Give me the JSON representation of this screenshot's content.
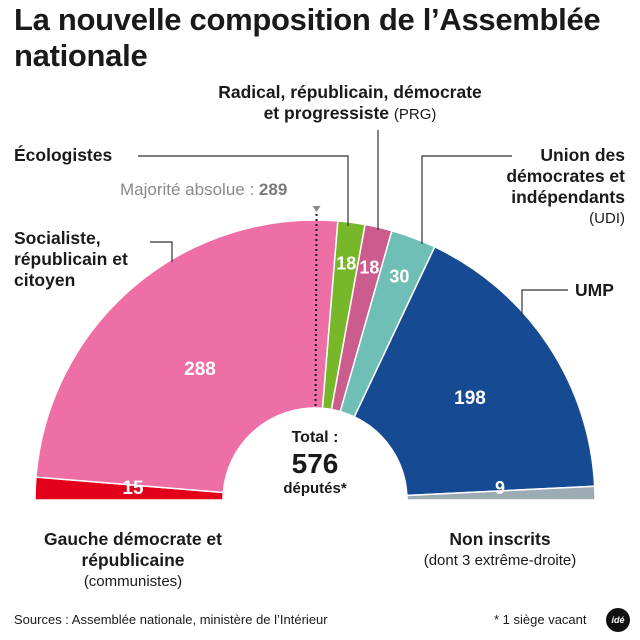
{
  "title": "La nouvelle composition de l’Assemblée nationale",
  "majority": {
    "label": "Majorité absolue :",
    "value": "289"
  },
  "total": {
    "label": "Total :",
    "value": "576",
    "unit": "députés*"
  },
  "labels": {
    "ecologistes": "Écologistes",
    "prg_name": "Radical, républicain, démocrate et progressiste",
    "prg_abbr": "(PRG)",
    "src_name": "Socialiste, républicain et citoyen",
    "udi_name": "Union des démocrates et indépendants",
    "udi_abbr": "(UDI)",
    "ump": "UMP",
    "gdr_name": "Gauche démocrate et républicaine",
    "gdr_note": "(communistes)",
    "ni_name": "Non inscrits",
    "ni_note": "(dont 3 extrême-droite)"
  },
  "footer": {
    "sources": "Sources : Assemblée nationale, ministère de l’Intérieur",
    "note": "* 1 siège vacant",
    "logo": "idé"
  },
  "chart_data": {
    "type": "pie",
    "subtype": "hemicycle",
    "title": "La nouvelle composition de l’Assemblée nationale",
    "total": 576,
    "majority": 289,
    "segments": [
      {
        "name": "Gauche démocrate et républicaine",
        "value": 15,
        "color": "#e2001a"
      },
      {
        "name": "Socialiste, républicain et citoyen",
        "value": 288,
        "color": "#ee6fa5"
      },
      {
        "name": "Écologistes",
        "value": 18,
        "color": "#77b82a"
      },
      {
        "name": "Radical, républicain, démocrate et progressiste",
        "value": 18,
        "color": "#cc5b8e"
      },
      {
        "name": "Union des démocrates et indépendants",
        "value": 30,
        "color": "#6fbfb6"
      },
      {
        "name": "UMP",
        "value": 198,
        "color": "#164a93"
      },
      {
        "name": "Non inscrits",
        "value": 9,
        "color": "#9cabb4"
      }
    ]
  }
}
